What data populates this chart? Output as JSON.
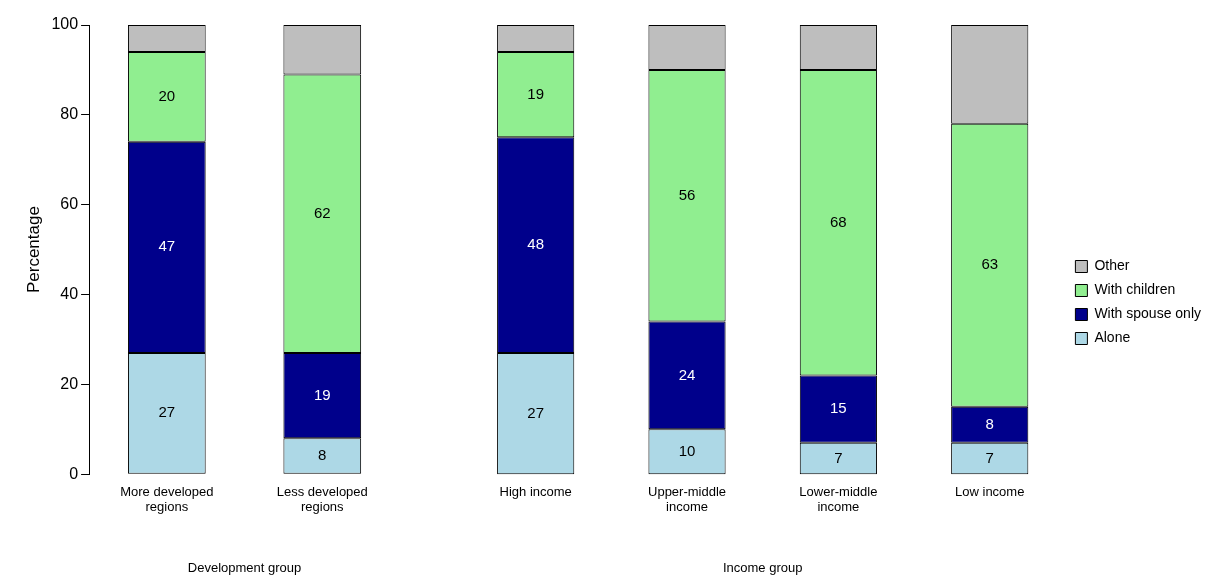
{
  "chart_data": [
    {
      "type": "bar",
      "stacked": true,
      "xlabel": "Development group",
      "ylabel": "Percentage",
      "categories": [
        "More developed regions",
        "Less developed regions"
      ],
      "ylim": [
        0,
        100
      ],
      "yticks": [
        0,
        20,
        40,
        60,
        80,
        100
      ],
      "grid": false,
      "legend": false,
      "series": [
        {
          "color": "#add8e6",
          "values": [
            27,
            8
          ],
          "value_labels": [
            "27",
            "8"
          ]
        },
        {
          "color": "#00008b",
          "values": [
            47,
            19
          ],
          "value_labels": [
            "47",
            "19"
          ]
        },
        {
          "color": "#90ee90",
          "values": [
            20,
            62
          ],
          "value_labels": [
            "20",
            "62"
          ]
        },
        {
          "color": "#bebebe",
          "values": [
            6,
            11
          ]
        }
      ]
    },
    {
      "type": "bar",
      "stacked": true,
      "xlabel": "Income group",
      "categories": [
        "High income",
        "Upper-middle income",
        "Lower-middle income",
        "Low income"
      ],
      "ylim": [
        0,
        100
      ],
      "tick_labels": "x",
      "grid": false,
      "legend": "right",
      "series": [
        {
          "name": "Alone",
          "color": "#add8e6",
          "values": [
            27,
            10,
            7,
            7
          ],
          "value_labels": [
            "27",
            "10",
            "7",
            "7"
          ]
        },
        {
          "name": "With spouse only",
          "color": "#00008b",
          "values": [
            48,
            24,
            15,
            8
          ],
          "value_labels": [
            "48",
            "24",
            "15",
            "8"
          ]
        },
        {
          "name": "With children",
          "color": "#90ee90",
          "values": [
            19,
            56,
            68,
            63
          ],
          "value_labels": [
            "19",
            "56",
            "68",
            "63"
          ]
        },
        {
          "name": "Other",
          "color": "#bebebe",
          "values": [
            6,
            10,
            10,
            22
          ]
        }
      ]
    }
  ]
}
